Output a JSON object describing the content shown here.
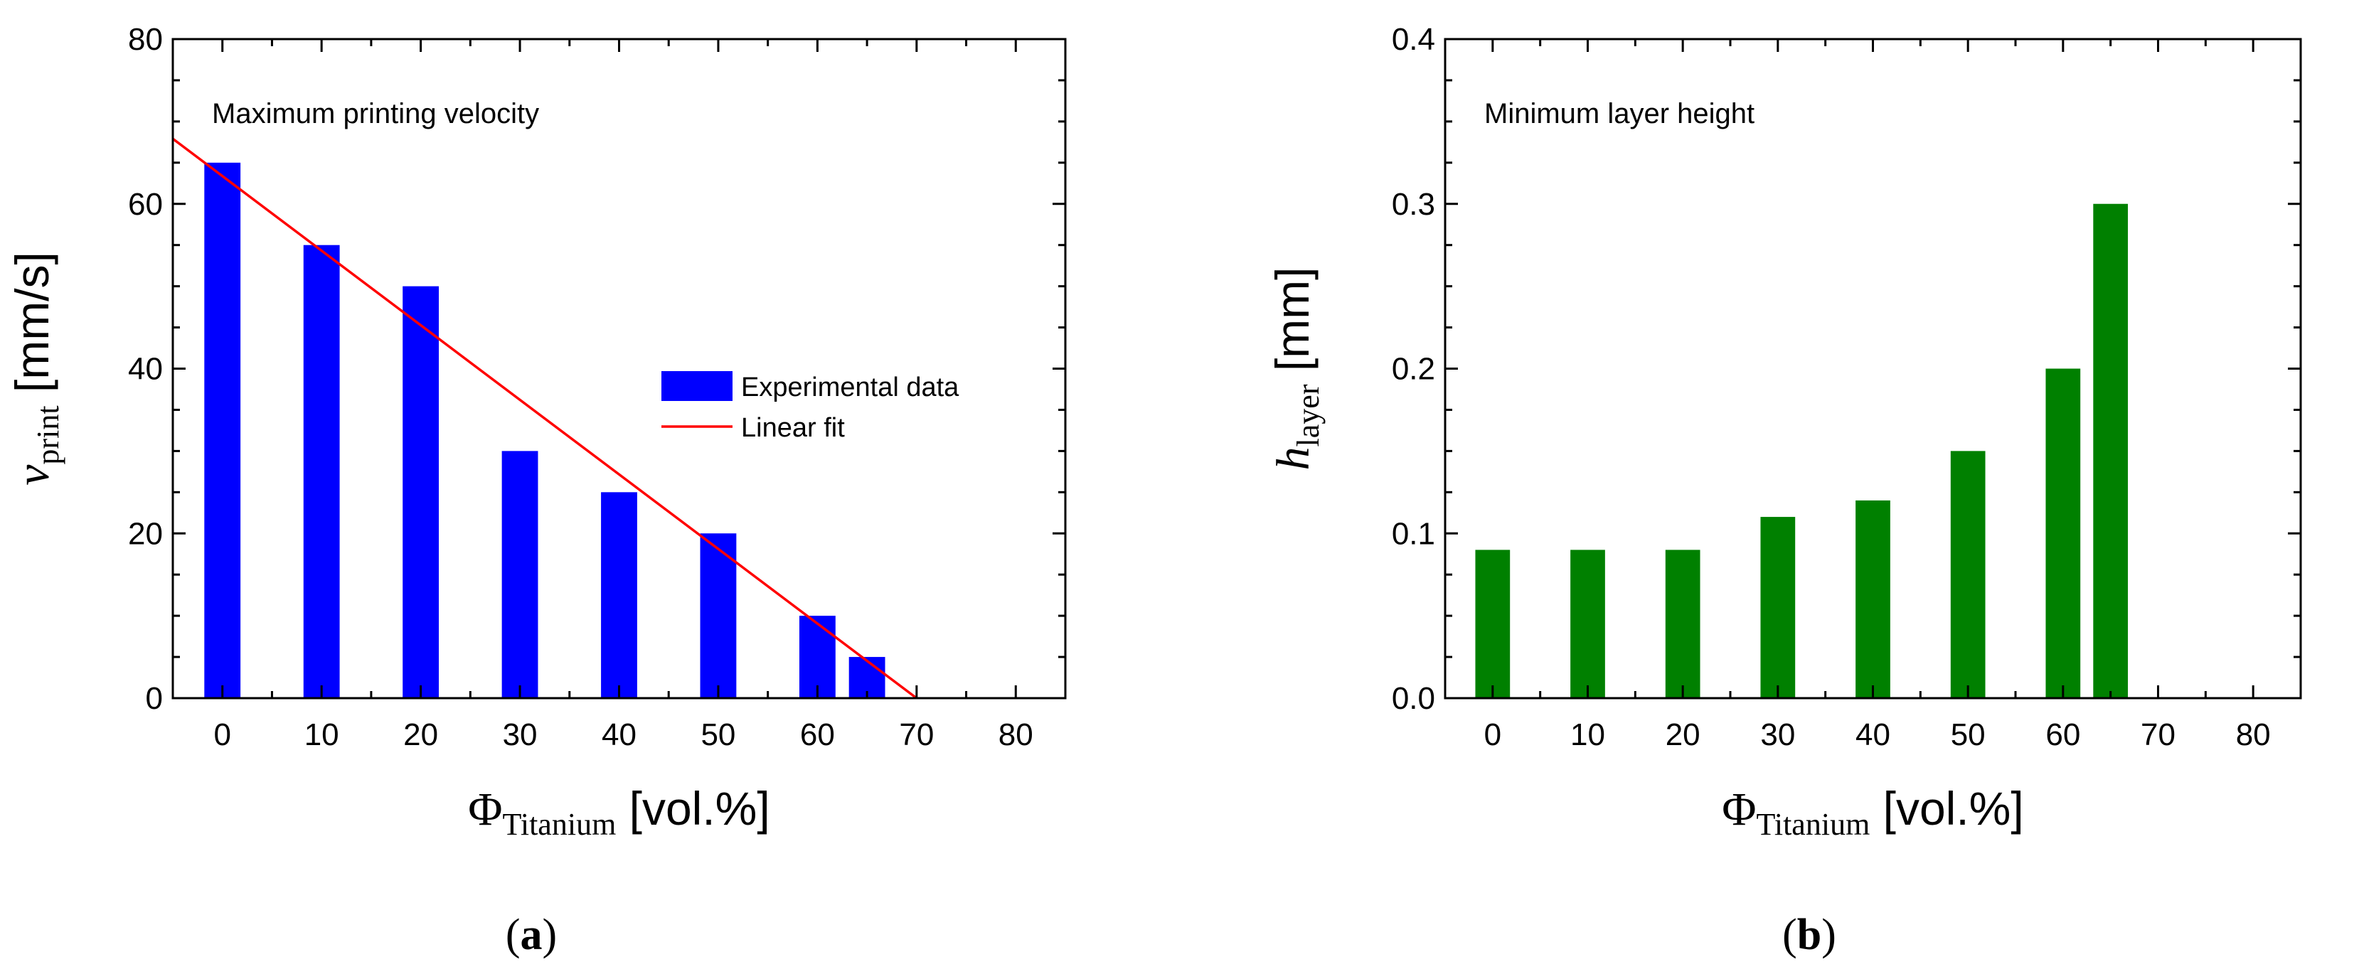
{
  "panels": [
    {
      "panel_label": "a",
      "chart_data": {
        "type": "bar",
        "annotation": "Maximum printing velocity",
        "x": [
          0,
          10,
          20,
          30,
          40,
          50,
          60,
          65
        ],
        "series": [
          {
            "name": "Experimental data",
            "kind": "bar",
            "color": "#0000ff",
            "values": [
              65,
              55,
              50,
              30,
              25,
              20,
              10,
              5
            ]
          },
          {
            "name": "Linear fit",
            "kind": "line",
            "color": "#ff0000",
            "points": [
              [
                -5,
                67.9
              ],
              [
                70,
                0
              ]
            ]
          }
        ],
        "xlim": [
          -5,
          85
        ],
        "ylim": [
          0,
          80
        ],
        "xticks": [
          "0",
          "10",
          "20",
          "30",
          "40",
          "50",
          "60",
          "70",
          "80"
        ],
        "yticks": [
          "0",
          "20",
          "40",
          "60",
          "80"
        ],
        "xlabel": {
          "symbol": "Φ",
          "sub": "Titanium",
          "unit": "[vol.%]"
        },
        "ylabel": {
          "symbol": "v",
          "sub": "print",
          "unit": "[mm/s]"
        },
        "legend": "center-right",
        "grid": false
      }
    },
    {
      "panel_label": "b",
      "chart_data": {
        "type": "bar",
        "annotation": "Minimum layer height",
        "x": [
          0,
          10,
          20,
          30,
          40,
          50,
          60,
          65
        ],
        "series": [
          {
            "name": "Minimum layer height",
            "kind": "bar",
            "color": "#008000",
            "values": [
              0.09,
              0.09,
              0.09,
              0.11,
              0.12,
              0.15,
              0.2,
              0.3
            ]
          }
        ],
        "xlim": [
          -5,
          85
        ],
        "ylim": [
          0,
          0.4
        ],
        "xticks": [
          "0",
          "10",
          "20",
          "30",
          "40",
          "50",
          "60",
          "70",
          "80"
        ],
        "yticks": [
          "0.0",
          "0.1",
          "0.2",
          "0.3",
          "0.4"
        ],
        "xlabel": {
          "symbol": "Φ",
          "sub": "Titanium",
          "unit": "[vol.%]"
        },
        "ylabel": {
          "symbol": "h",
          "sub": "layer",
          "unit": "[mm]"
        },
        "grid": false
      }
    }
  ]
}
